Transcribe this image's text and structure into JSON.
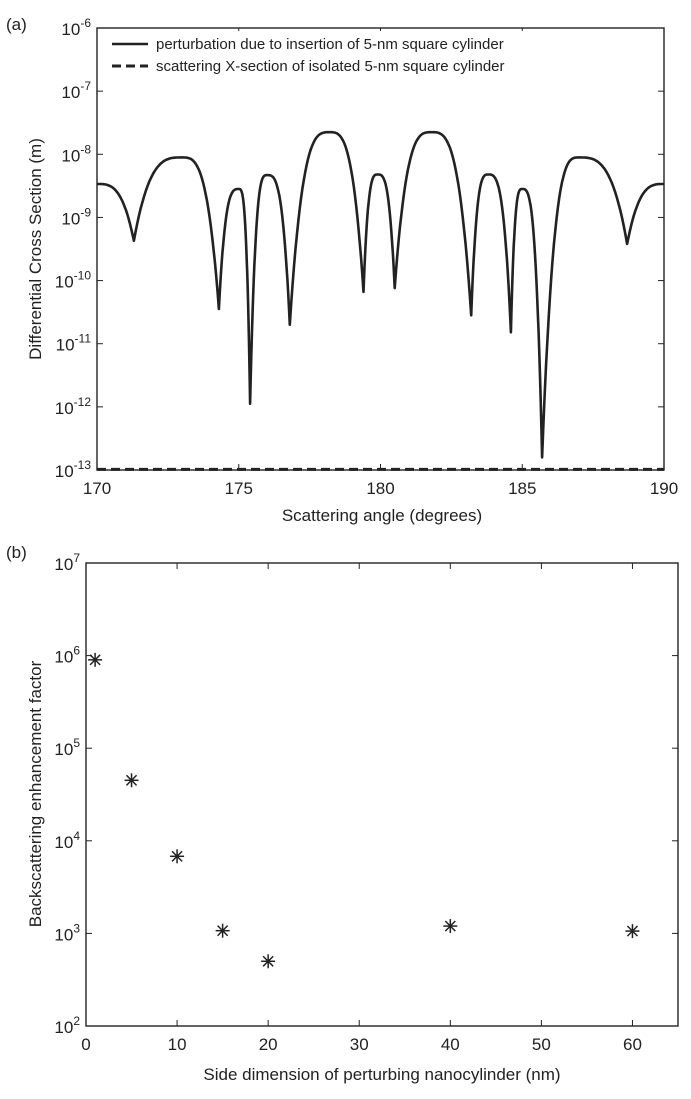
{
  "chart_data": [
    {
      "panel": "(a)",
      "type": "line",
      "xlabel": "Scattering angle (degrees)",
      "ylabel": "Differential Cross Section (m)",
      "xlim": [
        170,
        190
      ],
      "ylim_log10": [
        -13,
        -6
      ],
      "y_scale": "log",
      "x_ticks": [
        170,
        175,
        180,
        185,
        190
      ],
      "y_ticks": [
        {
          "base": "10",
          "exp": "-6"
        },
        {
          "base": "10",
          "exp": "-7"
        },
        {
          "base": "10",
          "exp": "-8"
        },
        {
          "base": "10",
          "exp": "-9"
        },
        {
          "base": "10",
          "exp": "-10"
        },
        {
          "base": "10",
          "exp": "-11"
        },
        {
          "base": "10",
          "exp": "-12"
        },
        {
          "base": "10",
          "exp": "-13"
        }
      ],
      "legend_position": "top",
      "series": [
        {
          "name": "perturbation due to insertion of 5-nm square cylinder",
          "style": "solid",
          "x": [
            170.0,
            171.3,
            173.0,
            174.3,
            175.0,
            175.4,
            176.0,
            176.8,
            178.2,
            179.4,
            179.9,
            180.5,
            181.8,
            183.2,
            183.8,
            184.6,
            185.0,
            185.7,
            187.0,
            188.7,
            190.0
          ],
          "y_log10": [
            -8.47,
            -9.37,
            -8.05,
            -10.45,
            -8.55,
            -11.95,
            -8.33,
            -10.7,
            -7.65,
            -10.18,
            -8.32,
            -10.12,
            -7.65,
            -10.55,
            -8.32,
            -10.82,
            -8.55,
            -12.8,
            -8.05,
            -9.42,
            -8.47
          ]
        },
        {
          "name": "scattering X-section of isolated 5-nm square cylinder",
          "style": "dashed",
          "x": [
            170,
            190
          ],
          "y_log10": [
            -12.99,
            -12.99
          ]
        }
      ]
    },
    {
      "panel": "(b)",
      "type": "scatter",
      "xlabel": "Side dimension of perturbing nanocylinder (nm)",
      "ylabel": "Backscattering enhancement factor",
      "xlim": [
        0,
        65
      ],
      "ylim_log10": [
        2,
        7
      ],
      "y_scale": "log",
      "x_ticks": [
        0,
        10,
        20,
        30,
        40,
        50,
        60
      ],
      "y_ticks": [
        {
          "base": "10",
          "exp": "7"
        },
        {
          "base": "10",
          "exp": "6"
        },
        {
          "base": "10",
          "exp": "5"
        },
        {
          "base": "10",
          "exp": "4"
        },
        {
          "base": "10",
          "exp": "3"
        },
        {
          "base": "10",
          "exp": "2"
        }
      ],
      "marker": "asterisk",
      "x": [
        1,
        5,
        10,
        15,
        20,
        40,
        60
      ],
      "y": [
        900000,
        45000,
        6800,
        1070,
        500,
        1200,
        1060
      ]
    }
  ]
}
